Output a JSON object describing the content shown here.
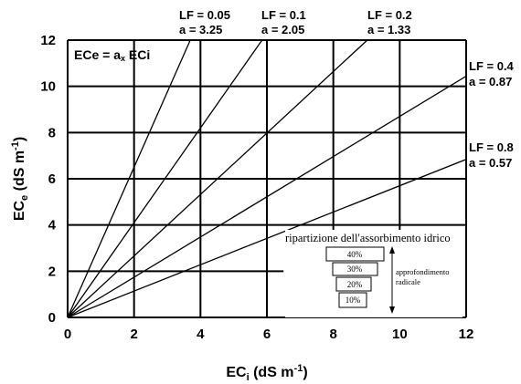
{
  "chart_data": {
    "type": "line",
    "xlabel": {
      "main": "EC",
      "sub": "i",
      "unit": " (dS m",
      "sup": "-1",
      "close": ")"
    },
    "ylabel": {
      "main": "EC",
      "sub": "e",
      "unit": " (dS m",
      "sup": "-1",
      "close": ")"
    },
    "xlim": [
      0,
      12
    ],
    "ylim": [
      0,
      12
    ],
    "x_ticks": [
      0,
      2,
      4,
      6,
      8,
      10,
      12
    ],
    "y_ticks": [
      0,
      2,
      4,
      6,
      8,
      10,
      12
    ],
    "grid": true,
    "formula": {
      "left": "ECe = a",
      "times": "x",
      "right": " ECi"
    },
    "series": [
      {
        "lf_text": "LF = 0.05",
        "a_text": "a = 3.25",
        "slope": 3.25
      },
      {
        "lf_text": "LF = 0.1",
        "a_text": "a = 2.05",
        "slope": 2.05
      },
      {
        "lf_text": "LF = 0.2",
        "a_text": "a = 1.33",
        "slope": 1.33
      },
      {
        "lf_text": "LF = 0.4",
        "a_text": "a = 0.87",
        "slope": 0.87
      },
      {
        "lf_text": "LF = 0.8",
        "a_text": "a = 0.57",
        "slope": 0.57
      }
    ]
  },
  "inset": {
    "title": "ripartizione dell'assorbimento idrico",
    "layers": [
      "40%",
      "30%",
      "20%",
      "10%"
    ],
    "depth_label_1": "approfondimento",
    "depth_label_2": "radicale"
  }
}
